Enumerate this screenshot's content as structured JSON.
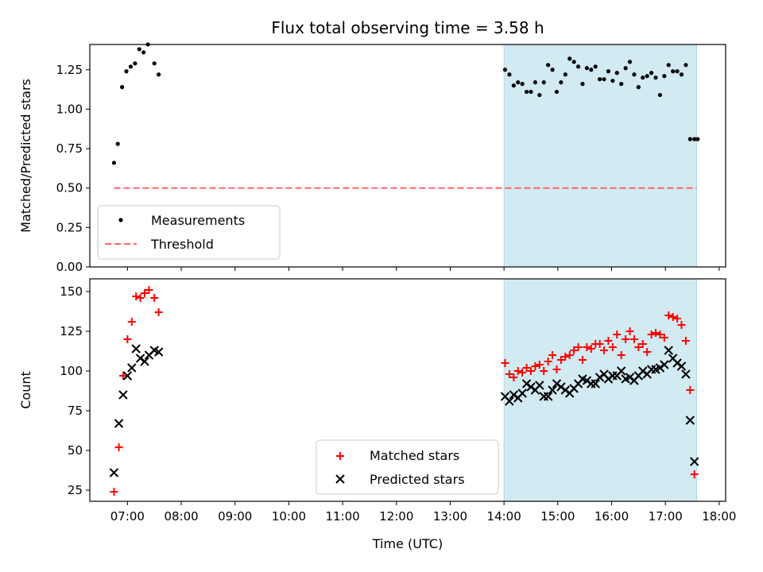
{
  "title": "Flux total observing time = 3.58 h",
  "colors": {
    "shade": "#add8e6",
    "threshold": "#ff6666",
    "measurements": "#000000",
    "matched": "#ff0000",
    "predicted": "#000000"
  },
  "x_ticks": [
    "07:00",
    "08:00",
    "09:00",
    "10:00",
    "11:00",
    "12:00",
    "13:00",
    "14:00",
    "15:00",
    "16:00",
    "17:00",
    "18:00"
  ],
  "xlabel": "Time (UTC)",
  "chart_data": [
    {
      "type": "scatter",
      "ylabel": "Matched/Predicted stars",
      "xlim": [
        6.3,
        18.12
      ],
      "ylim": [
        0,
        1.41
      ],
      "y_ticks": [
        "0.00",
        "0.25",
        "0.50",
        "0.75",
        "1.00",
        "1.25"
      ],
      "shaded_region": [
        14.0,
        17.58
      ],
      "legend_position": "lower-left",
      "legend": [
        "Measurements",
        "Threshold"
      ],
      "threshold": {
        "name": "Threshold",
        "x": [
          6.75,
          17.58
        ],
        "y": 0.5
      },
      "series": [
        {
          "name": "Measurements",
          "marker": "dot",
          "x": [
            6.75,
            6.82,
            6.9,
            6.98,
            7.06,
            7.14,
            7.22,
            7.3,
            7.38,
            7.5,
            7.58,
            14.02,
            14.1,
            14.18,
            14.26,
            14.34,
            14.42,
            14.5,
            14.58,
            14.66,
            14.74,
            14.82,
            14.9,
            14.98,
            15.06,
            15.14,
            15.22,
            15.3,
            15.38,
            15.46,
            15.54,
            15.62,
            15.7,
            15.78,
            15.86,
            15.94,
            16.02,
            16.1,
            16.18,
            16.26,
            16.34,
            16.42,
            16.5,
            16.58,
            16.66,
            16.74,
            16.82,
            16.9,
            16.98,
            17.06,
            17.14,
            17.22,
            17.3,
            17.38,
            17.46,
            17.54,
            17.6
          ],
          "y": [
            0.66,
            0.78,
            1.14,
            1.24,
            1.27,
            1.29,
            1.38,
            1.36,
            1.41,
            1.29,
            1.22,
            1.25,
            1.22,
            1.15,
            1.17,
            1.16,
            1.11,
            1.11,
            1.17,
            1.09,
            1.17,
            1.28,
            1.25,
            1.11,
            1.17,
            1.22,
            1.32,
            1.3,
            1.27,
            1.16,
            1.26,
            1.25,
            1.27,
            1.19,
            1.19,
            1.24,
            1.18,
            1.23,
            1.16,
            1.26,
            1.3,
            1.22,
            1.14,
            1.2,
            1.21,
            1.23,
            1.2,
            1.09,
            1.21,
            1.28,
            1.24,
            1.24,
            1.22,
            1.28,
            0.81,
            0.81,
            0.81
          ]
        }
      ]
    },
    {
      "type": "scatter",
      "ylabel": "Count",
      "xlim": [
        6.3,
        18.12
      ],
      "ylim": [
        18,
        158
      ],
      "y_ticks": [
        "25",
        "50",
        "75",
        "100",
        "125",
        "150"
      ],
      "shaded_region": [
        14.0,
        17.58
      ],
      "legend_position": "lower-center",
      "legend": [
        "Matched stars",
        "Predicted stars"
      ],
      "series": [
        {
          "name": "Matched stars",
          "marker": "plus",
          "x": [
            6.75,
            6.84,
            6.92,
            7.0,
            7.08,
            7.16,
            7.24,
            7.32,
            7.4,
            7.5,
            7.58,
            14.02,
            14.1,
            14.18,
            14.26,
            14.34,
            14.42,
            14.5,
            14.58,
            14.66,
            14.74,
            14.82,
            14.9,
            14.98,
            15.06,
            15.14,
            15.22,
            15.3,
            15.38,
            15.46,
            15.54,
            15.62,
            15.7,
            15.78,
            15.86,
            15.94,
            16.02,
            16.1,
            16.18,
            16.26,
            16.34,
            16.42,
            16.5,
            16.58,
            16.66,
            16.74,
            16.82,
            16.9,
            16.98,
            17.06,
            17.14,
            17.22,
            17.3,
            17.38,
            17.46,
            17.54
          ],
          "y": [
            24,
            52,
            97,
            120,
            131,
            147,
            146,
            149,
            151,
            146,
            137,
            105,
            98,
            96,
            100,
            99,
            102,
            100,
            103,
            104,
            100,
            106,
            110,
            101,
            107,
            109,
            110,
            113,
            115,
            107,
            115,
            114,
            117,
            117,
            113,
            119,
            115,
            123,
            110,
            120,
            125,
            120,
            115,
            117,
            112,
            123,
            124,
            123,
            121,
            135,
            134,
            133,
            129,
            119,
            88,
            35
          ]
        },
        {
          "name": "Predicted stars",
          "marker": "x",
          "x": [
            6.75,
            6.84,
            6.92,
            7.0,
            7.08,
            7.16,
            7.24,
            7.32,
            7.4,
            7.5,
            7.58,
            14.02,
            14.1,
            14.18,
            14.26,
            14.34,
            14.42,
            14.5,
            14.58,
            14.66,
            14.74,
            14.82,
            14.9,
            14.98,
            15.06,
            15.14,
            15.22,
            15.3,
            15.38,
            15.46,
            15.54,
            15.62,
            15.7,
            15.78,
            15.86,
            15.94,
            16.02,
            16.1,
            16.18,
            16.26,
            16.34,
            16.42,
            16.5,
            16.58,
            16.66,
            16.74,
            16.82,
            16.9,
            16.98,
            17.06,
            17.14,
            17.22,
            17.3,
            17.38,
            17.46,
            17.54
          ],
          "y": [
            36,
            67,
            85,
            97,
            102,
            114,
            108,
            106,
            110,
            113,
            112,
            84,
            81,
            85,
            83,
            86,
            92,
            90,
            88,
            91,
            84,
            84,
            88,
            92,
            90,
            88,
            86,
            89,
            92,
            95,
            94,
            92,
            92,
            96,
            98,
            95,
            97,
            97,
            100,
            95,
            96,
            94,
            97,
            100,
            98,
            101,
            101,
            102,
            104,
            113,
            108,
            105,
            103,
            98,
            69,
            43
          ]
        }
      ]
    }
  ]
}
